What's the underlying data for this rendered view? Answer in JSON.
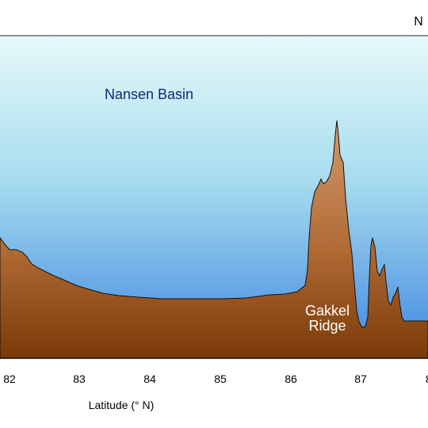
{
  "diagram": {
    "corner_label": "N",
    "basin_label": "Nansen Basin",
    "ridge_label_line1": "Gakkel",
    "ridge_label_line2": "Ridge",
    "x_axis_label": "Latitude (° N)",
    "x_ticks": [
      "82",
      "83",
      "84",
      "85",
      "86",
      "87",
      "8"
    ]
  },
  "colors": {
    "water_top": "#e6f9f9",
    "water_bottom": "#3f86e0",
    "seafloor_top": "#d29a6e",
    "seafloor_bottom": "#7a3a08",
    "basin_label": "#0d2a7a",
    "ridge_label": "#ffffff"
  }
}
